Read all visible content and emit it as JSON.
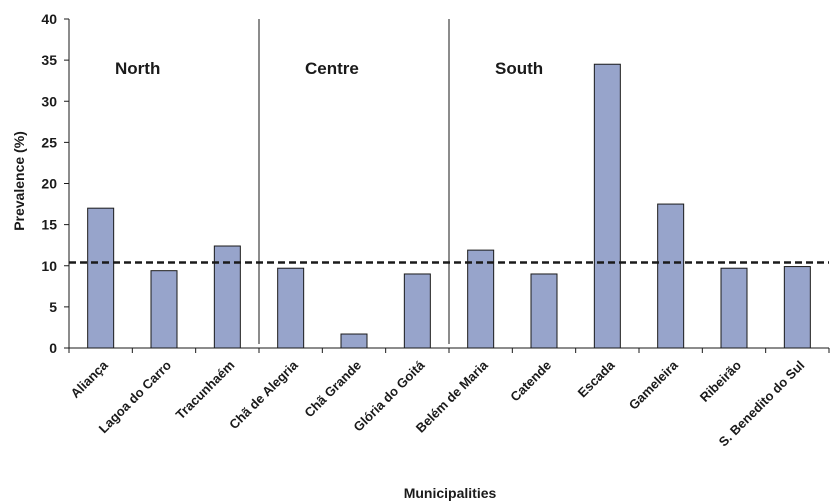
{
  "chart_data": {
    "type": "bar",
    "categories": [
      "Aliança",
      "Lagoa do Carro",
      "Tracunhaém",
      "Chã de Alegria",
      "Chã Grande",
      "Glória do Goitá",
      "Belém de Maria",
      "Catende",
      "Escada",
      "Gameleira",
      "Ribeirão",
      "S. Benedito do Sul"
    ],
    "values": [
      17.0,
      9.4,
      12.4,
      9.7,
      1.7,
      9.0,
      11.9,
      9.0,
      34.5,
      17.5,
      9.7,
      9.9
    ],
    "xlabel": "Municipalities",
    "ylabel": "Prevalence (%)",
    "ylim": [
      0,
      40
    ],
    "yticks": [
      0,
      5,
      10,
      15,
      20,
      25,
      30,
      35,
      40
    ],
    "reference_line": 10.4,
    "regions": [
      {
        "label": "North",
        "start": 0,
        "end": 3
      },
      {
        "label": "Centre",
        "start": 3,
        "end": 6
      },
      {
        "label": "South",
        "start": 6,
        "end": 12
      }
    ],
    "grid": false,
    "legend": "none",
    "colors": {
      "bar_fill": "#97A4CB",
      "bar_stroke": "#1a1a1a",
      "axis": "#1a1a1a"
    }
  }
}
